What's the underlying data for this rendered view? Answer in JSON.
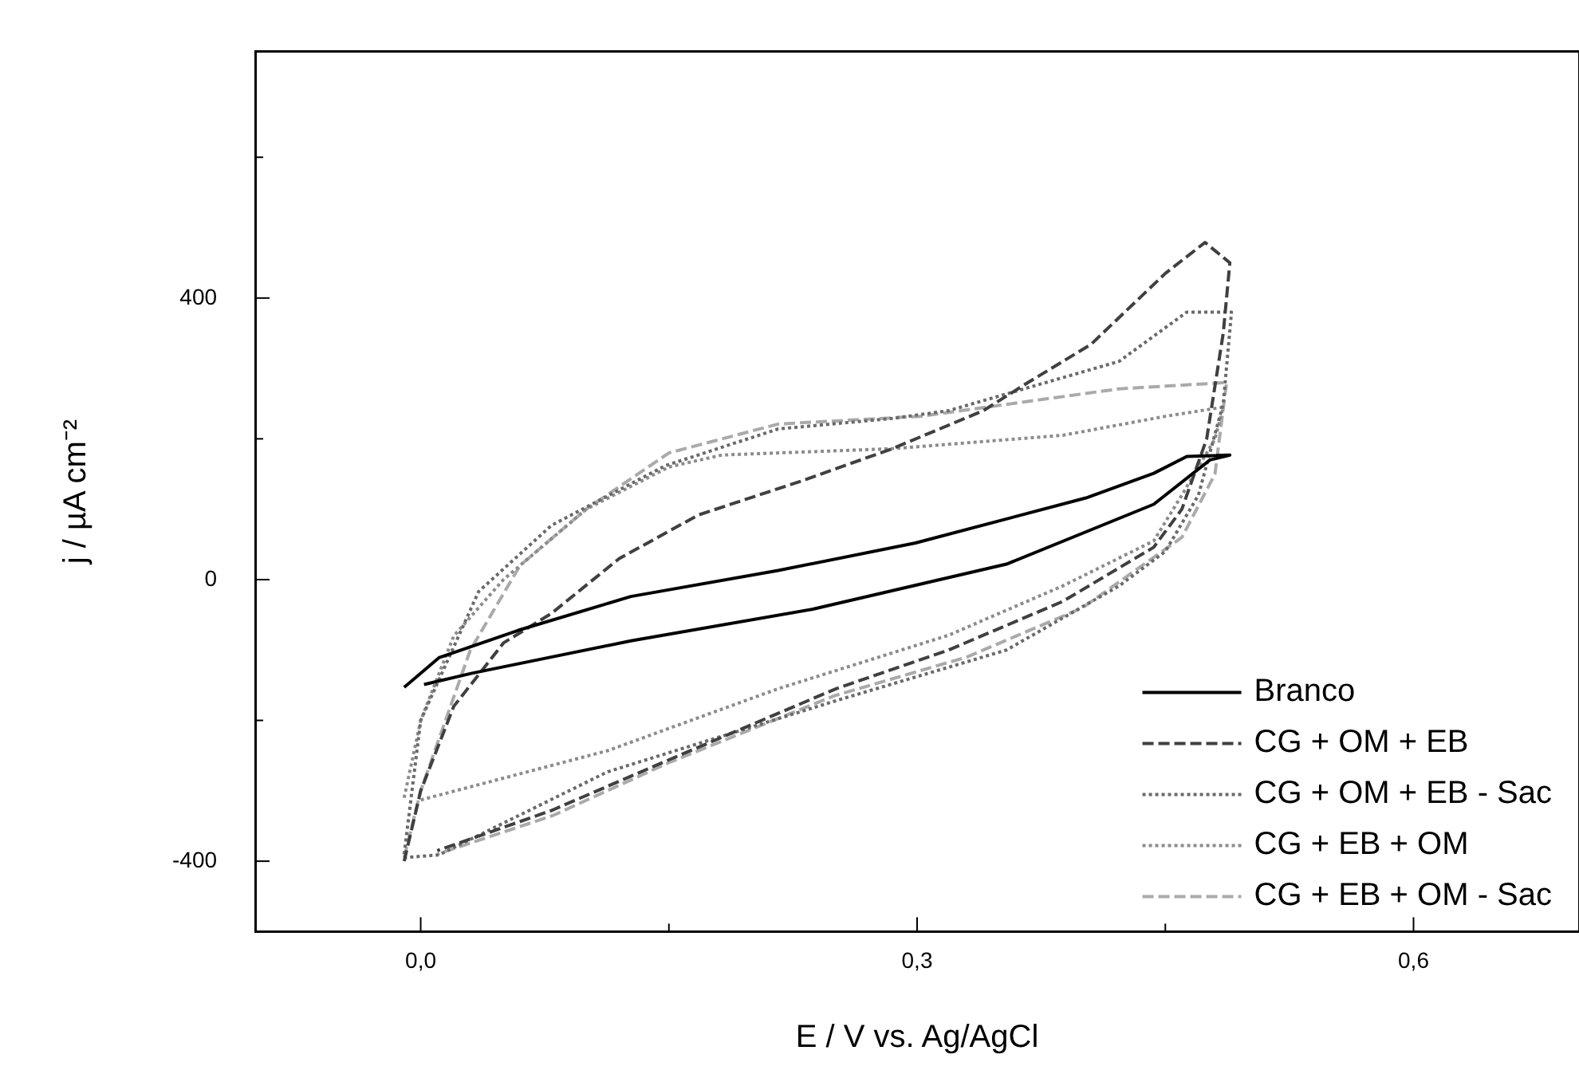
{
  "chart_data": {
    "type": "line",
    "xlabel": "E / V vs. Ag/AgCl",
    "ylabel": "j / µA cm⁻²",
    "xlim": [
      -0.1,
      0.7
    ],
    "xticks": [
      {
        "value": 0,
        "label": "0,0"
      },
      {
        "value": 0.15,
        "label": null
      },
      {
        "value": 0.3,
        "label": "0,3"
      },
      {
        "value": 0.45,
        "label": null
      },
      {
        "value": 0.6,
        "label": "0,6"
      }
    ],
    "ylim": [
      -500,
      750
    ],
    "yticks": [
      {
        "value": -400,
        "label": "-400"
      },
      {
        "value": -200,
        "label": null
      },
      {
        "value": 0,
        "label": "0"
      },
      {
        "value": 200,
        "label": null
      },
      {
        "value": 400,
        "label": "400"
      },
      {
        "value": 600,
        "label": null
      }
    ],
    "legend": "bottom right",
    "grid": false,
    "marker": "none",
    "series": [
      {
        "name": "Branco",
        "color": "#000000",
        "line_style": "solid",
        "x": [
          -0.01,
          0.011,
          0.059,
          0.127,
          0.216,
          0.299,
          0.402,
          0.443,
          0.463,
          0.489,
          0.477,
          0.443,
          0.354,
          0.237,
          0.127,
          0.031,
          0.002
        ],
        "values": [
          -153,
          -111,
          -72,
          -24,
          13,
          52,
          116,
          151,
          175,
          177,
          170,
          107,
          22,
          -42,
          -87,
          -133,
          -149
        ]
      },
      {
        "name": "CG + OM + EB",
        "color": "#404040",
        "line_style": "dashed",
        "x": [
          -0.01,
          0.0,
          0.02,
          0.05,
          0.079,
          0.12,
          0.168,
          0.23,
          0.285,
          0.34,
          0.367,
          0.405,
          0.45,
          0.474,
          0.489,
          0.485,
          0.475,
          0.46,
          0.443,
          0.388,
          0.319,
          0.251,
          0.148,
          0.079,
          0.01
        ],
        "values": [
          -400,
          -300,
          -180,
          -90,
          -48,
          30,
          92,
          140,
          186,
          240,
          280,
          334,
          435,
          479,
          450,
          350,
          200,
          100,
          46,
          -31,
          -100,
          -155,
          -258,
          -328,
          -385
        ]
      },
      {
        "name": "CG + OM + EB - Sac",
        "color": "#6a6a6a",
        "line_style": "dotted",
        "x": [
          -0.01,
          0.0,
          0.035,
          0.079,
          0.148,
          0.216,
          0.285,
          0.319,
          0.422,
          0.463,
          0.49,
          0.485,
          0.47,
          0.45,
          0.422,
          0.354,
          0.251,
          0.113,
          0.011,
          -0.01
        ],
        "values": [
          -390,
          -200,
          -17,
          77,
          162,
          214,
          229,
          240,
          310,
          380,
          380,
          250,
          120,
          40,
          -9,
          -100,
          -172,
          -273,
          -391,
          -395
        ]
      },
      {
        "name": "CG + EB + OM",
        "color": "#8c8c8c",
        "line_style": "dotted",
        "x": [
          -0.01,
          0.0,
          0.02,
          0.05,
          0.1,
          0.15,
          0.182,
          0.285,
          0.388,
          0.45,
          0.485,
          0.48,
          0.46,
          0.443,
          0.388,
          0.319,
          0.216,
          0.113,
          0.0
        ],
        "values": [
          -310,
          -200,
          -80,
          0,
          100,
          160,
          177,
          186,
          205,
          232,
          245,
          200,
          120,
          55,
          -9,
          -79,
          -155,
          -243,
          -313
        ]
      },
      {
        "name": "CG + EB + OM - Sac",
        "color": "#aaaaaa",
        "line_style": "dashed",
        "x": [
          -0.01,
          0.0,
          0.03,
          0.06,
          0.1,
          0.15,
          0.216,
          0.302,
          0.422,
          0.487,
          0.48,
          0.46,
          0.4,
          0.33,
          0.25,
          0.15,
          0.08,
          0.01
        ],
        "values": [
          -395,
          -300,
          -100,
          20,
          100,
          180,
          221,
          232,
          271,
          280,
          150,
          60,
          -40,
          -110,
          -165,
          -260,
          -335,
          -390
        ]
      }
    ]
  }
}
